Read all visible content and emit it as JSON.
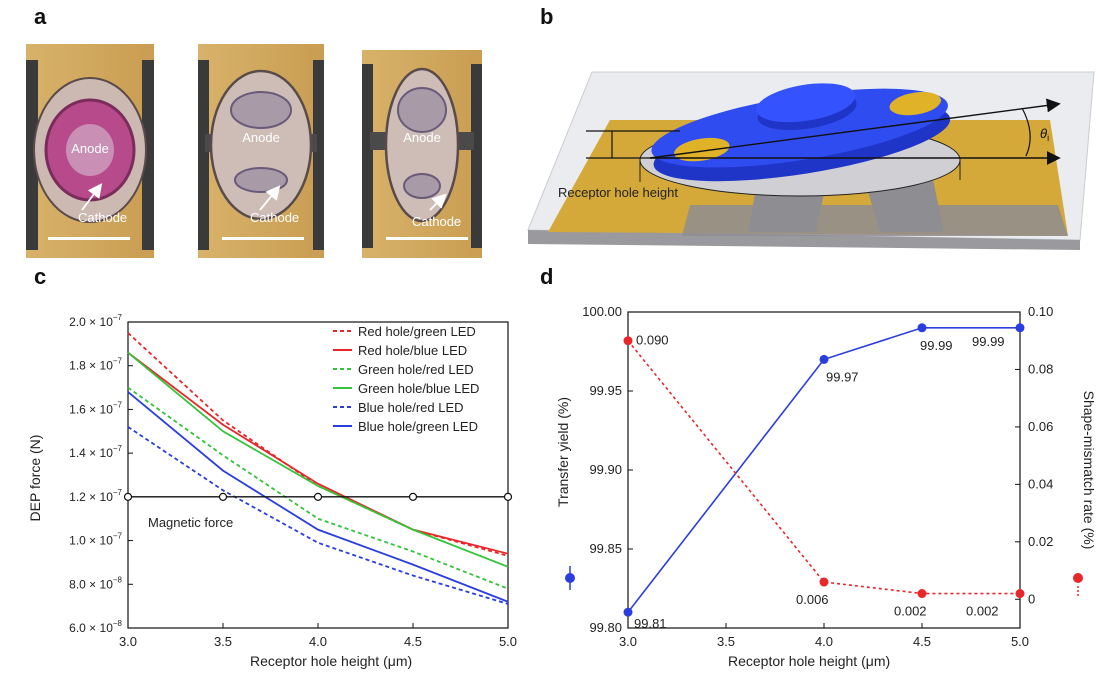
{
  "panels": {
    "a": "a",
    "b": "b",
    "c": "c",
    "d": "d"
  },
  "panel_a": {
    "images": [
      {
        "anode": "Anode",
        "cathode": "Cathode"
      },
      {
        "anode": "Anode",
        "cathode": "Cathode"
      },
      {
        "anode": "Anode",
        "cathode": "Cathode"
      }
    ]
  },
  "panel_b": {
    "label": "Receptor hole height",
    "angle_label": "θ",
    "angle_subscript": "i"
  },
  "chart_data": [
    {
      "type": "line",
      "panel": "c",
      "xlabel": "Receptor hole height (μm)",
      "ylabel": "DEP force (N)",
      "x": [
        3.0,
        3.5,
        4.0,
        4.5,
        5.0
      ],
      "xticks": [
        "3.0",
        "3.5",
        "4.0",
        "4.5",
        "5.0"
      ],
      "xlim": [
        3.0,
        5.0
      ],
      "ylim": [
        6e-08,
        2e-07
      ],
      "yticks": [
        {
          "value": 2e-07,
          "mant": "2.0 × 10",
          "exp": "−7"
        },
        {
          "value": 1.8e-07,
          "mant": "1.8 × 10",
          "exp": "−7"
        },
        {
          "value": 1.6e-07,
          "mant": "1.6 × 10",
          "exp": "−7"
        },
        {
          "value": 1.4e-07,
          "mant": "1.4 × 10",
          "exp": "−7"
        },
        {
          "value": 1.2e-07,
          "mant": "1.2 × 10",
          "exp": "−7"
        },
        {
          "value": 1e-07,
          "mant": "1.0 × 10",
          "exp": "−7"
        },
        {
          "value": 8e-08,
          "mant": "8.0 × 10",
          "exp": "−8"
        },
        {
          "value": 6e-08,
          "mant": "6.0 × 10",
          "exp": "−8"
        }
      ],
      "series": [
        {
          "name": "Red hole/green LED",
          "color": "#e8272b",
          "dash": true,
          "values": [
            1.95e-07,
            1.55e-07,
            1.25e-07,
            1.05e-07,
            9.3e-08
          ]
        },
        {
          "name": "Red hole/blue LED",
          "color": "#e8272b",
          "dash": false,
          "values": [
            1.86e-07,
            1.53e-07,
            1.26e-07,
            1.05e-07,
            9.4e-08
          ]
        },
        {
          "name": "Green hole/red LED",
          "color": "#33c43a",
          "dash": true,
          "values": [
            1.7e-07,
            1.39e-07,
            1.1e-07,
            9.5e-08,
            7.8e-08
          ]
        },
        {
          "name": "Green hole/blue LED",
          "color": "#33c43a",
          "dash": false,
          "values": [
            1.86e-07,
            1.5e-07,
            1.25e-07,
            1.05e-07,
            8.8e-08
          ]
        },
        {
          "name": "Blue hole/red LED",
          "color": "#2a3ee0",
          "dash": true,
          "values": [
            1.52e-07,
            1.23e-07,
            9.9e-08,
            8.4e-08,
            7.1e-08
          ]
        },
        {
          "name": "Blue hole/green LED",
          "color": "#2a3ee0",
          "dash": false,
          "values": [
            1.68e-07,
            1.32e-07,
            1.05e-07,
            8.9e-08,
            7.2e-08
          ]
        }
      ],
      "reference": {
        "label": "Magnetic force",
        "value": 1.2e-07,
        "color": "#111111"
      }
    },
    {
      "type": "line",
      "panel": "d",
      "xlabel": "Receptor hole height (μm)",
      "ylabel_left": "Transfer yield (%)",
      "ylabel_right": "Shape-mismatch rate (%)",
      "x": [
        3.0,
        4.0,
        4.5,
        5.0
      ],
      "xticks": [
        "3.0",
        "3.5",
        "4.0",
        "4.5",
        "5.0"
      ],
      "xlim": [
        3.0,
        5.0
      ],
      "ylim_left": [
        99.8,
        100.0
      ],
      "yticks_left": [
        "100.00",
        "99.95",
        "99.90",
        "99.85",
        "99.80"
      ],
      "ylim_right": [
        -0.01,
        0.1
      ],
      "yticks_right": [
        "0.10",
        "0.08",
        "0.06",
        "0.04",
        "0.02",
        "0"
      ],
      "series": [
        {
          "name": "Transfer yield",
          "axis": "left",
          "color": "#2a3ee0",
          "dash": false,
          "values": [
            99.81,
            99.97,
            99.99,
            99.99
          ],
          "labels": [
            "99.81",
            "99.97",
            "99.99",
            "99.99"
          ]
        },
        {
          "name": "Shape-mismatch rate",
          "axis": "right",
          "color": "#e8272b",
          "dash": true,
          "values": [
            0.09,
            0.006,
            0.002,
            0.002
          ],
          "labels": [
            "0.090",
            "0.006",
            "0.002",
            "0.002"
          ]
        }
      ]
    }
  ]
}
